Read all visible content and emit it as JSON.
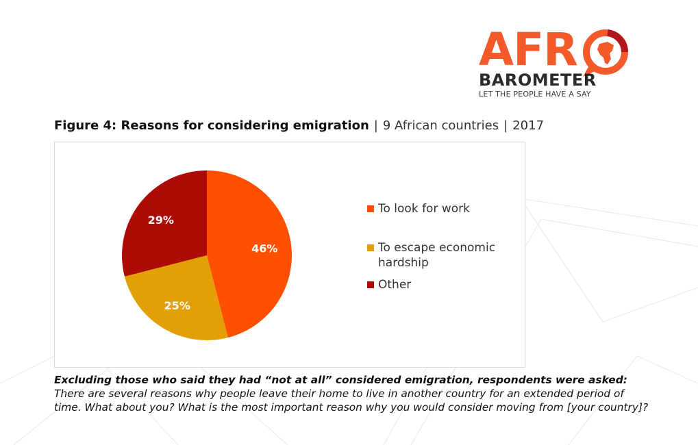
{
  "logo": {
    "word_afr": "AFR",
    "word_sub": "BAROMETER",
    "tagline": "LET THE PEOPLE HAVE A SAY",
    "colors": {
      "orange": "#f4592a",
      "dark_red": "#b5161b",
      "text": "#2b2b2b"
    }
  },
  "figure": {
    "title_bold": "Figure 4: Reasons for considering emigration",
    "separator": "|",
    "title_mid": "9 African countries",
    "title_year": "2017"
  },
  "chart_data": {
    "type": "pie",
    "categories": [
      "To look for work",
      "To escape economic hardship",
      "Other"
    ],
    "values": [
      46,
      25,
      29
    ],
    "data_labels": [
      "46%",
      "25%",
      "29%"
    ],
    "colors": [
      "#fe5000",
      "#e39f06",
      "#ad0b05"
    ],
    "legend_position": "right",
    "start_angle": "12 o'clock, clockwise"
  },
  "note": {
    "lead": "Excluding those who said they had “not at all” considered emigration, respondents were asked:",
    "body": " There are several reasons why people leave their home to live in another country for an extended period of time. What about you? What is the most important reason why you would consider moving from [your country]?"
  }
}
